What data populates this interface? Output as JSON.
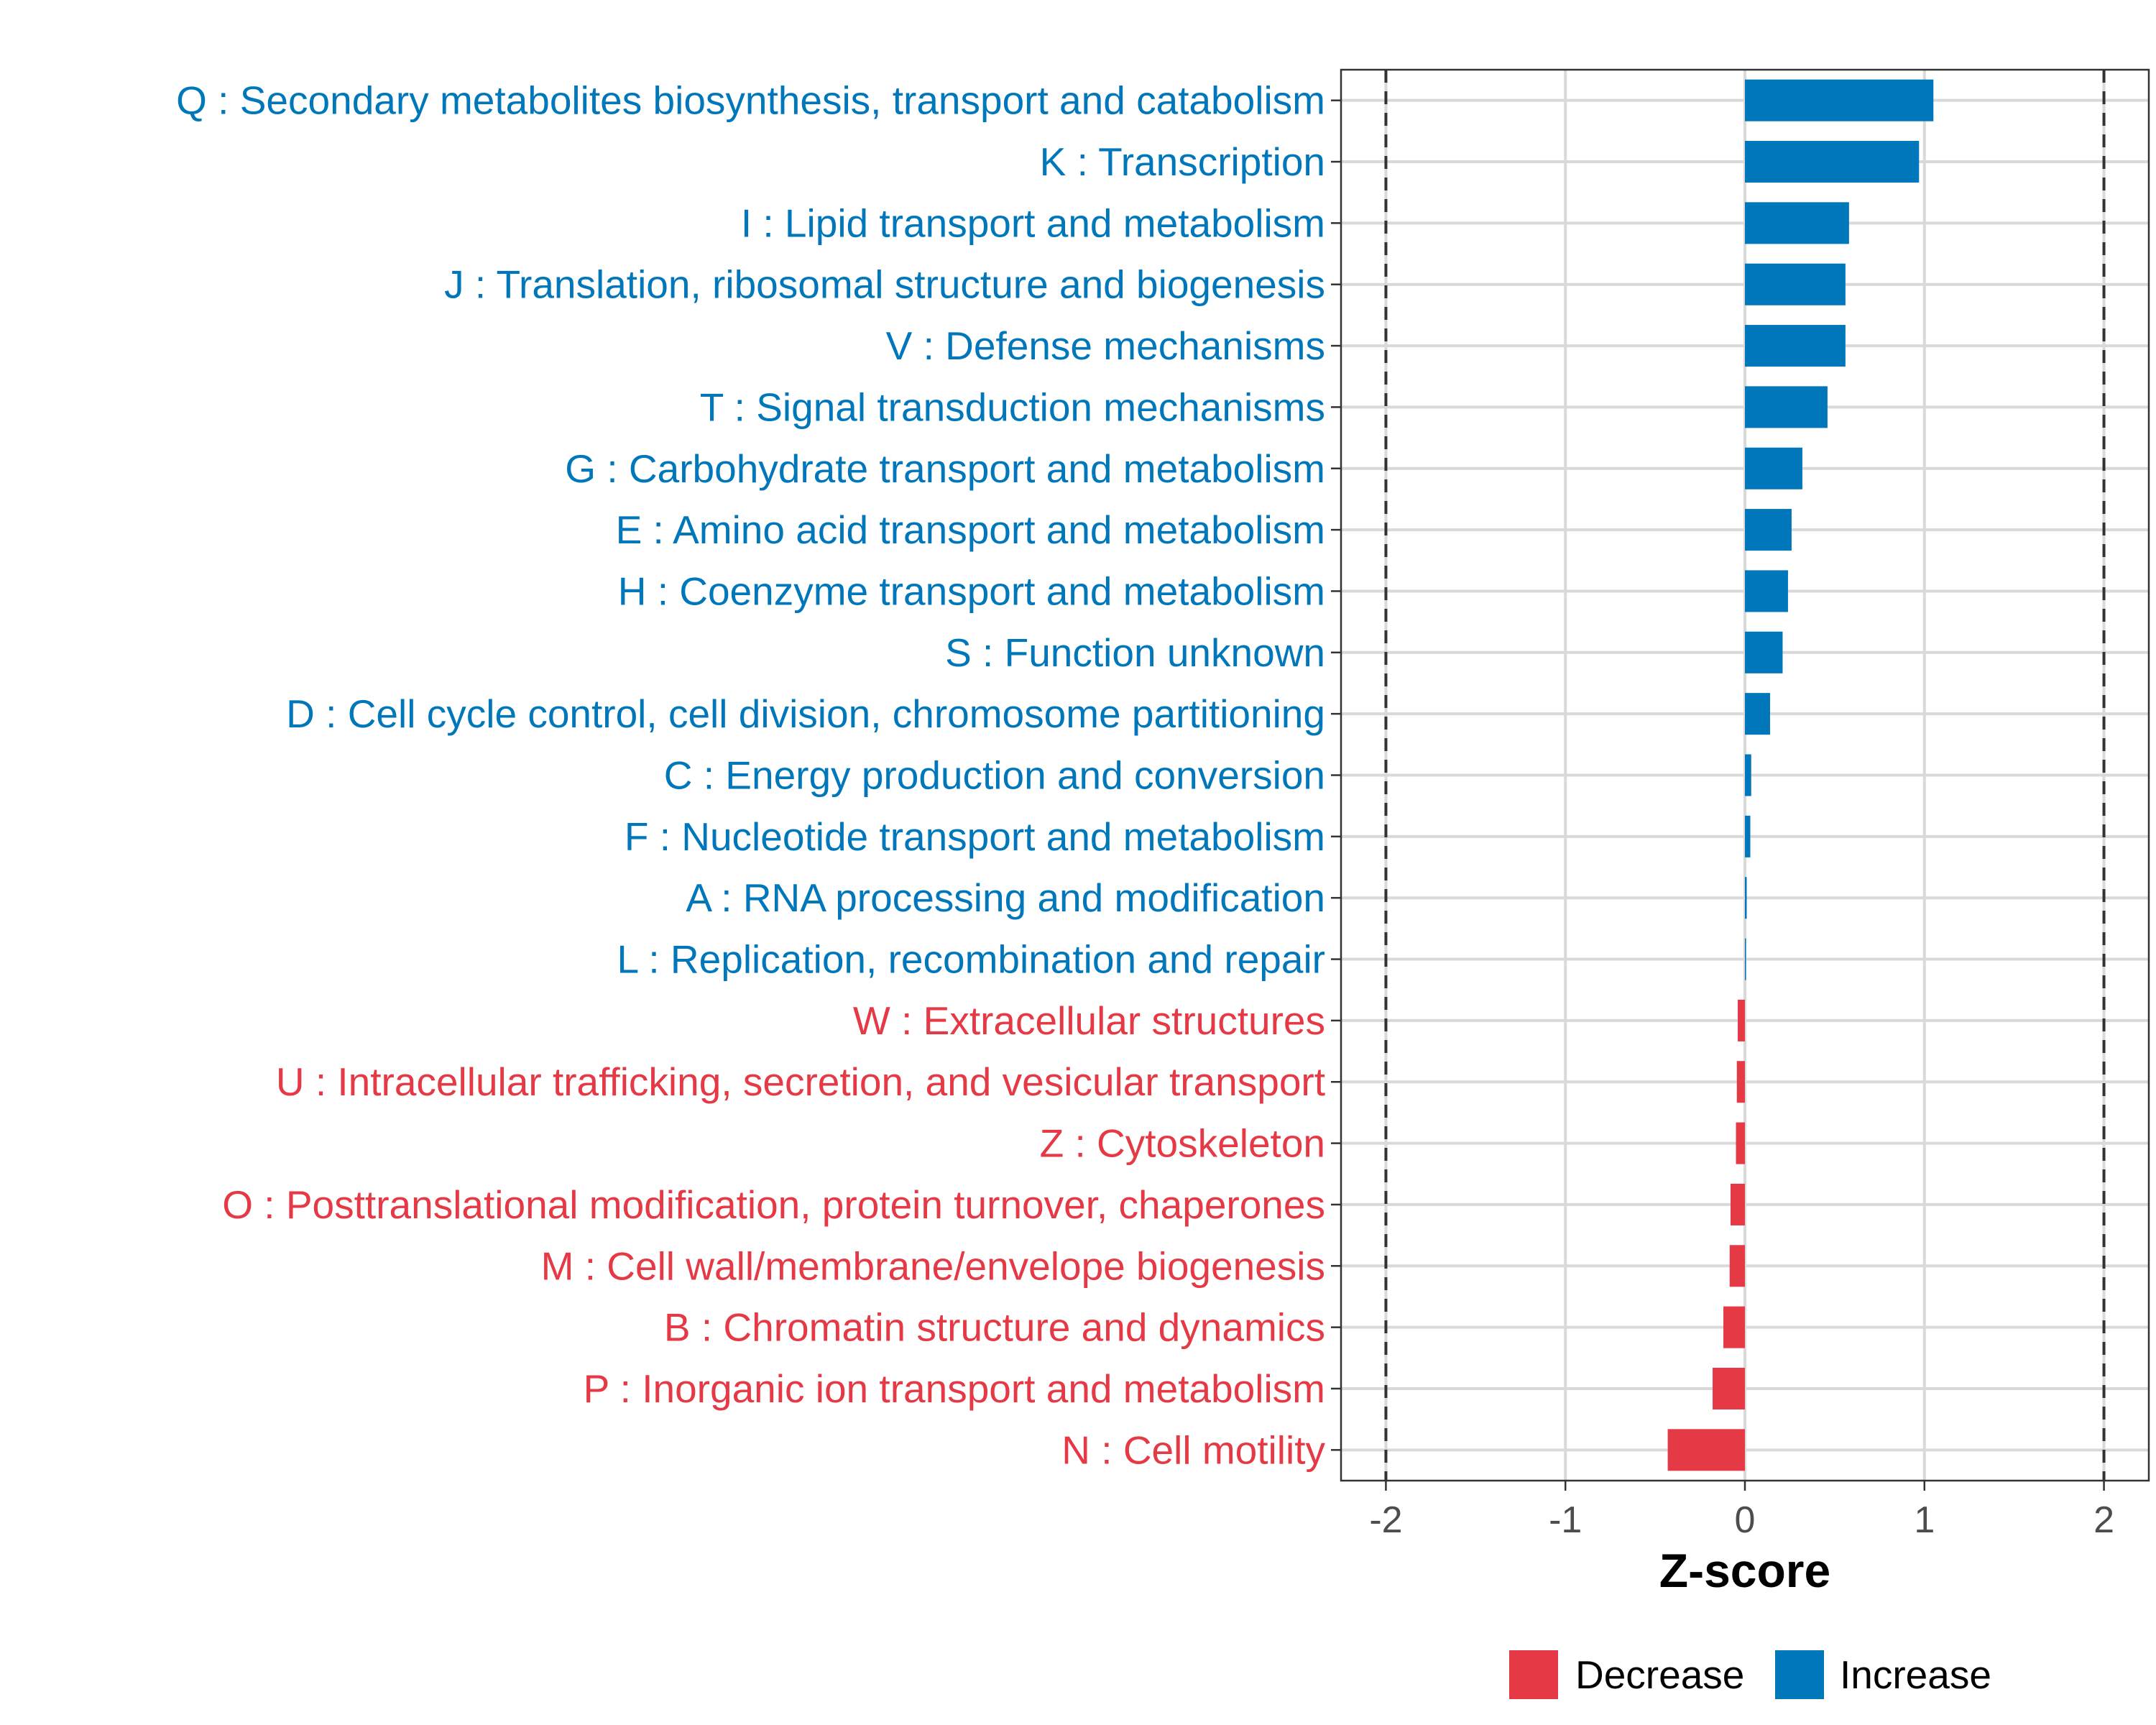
{
  "chart_data": {
    "type": "bar",
    "orientation": "horizontal",
    "title": "",
    "xlabel": "Z-score",
    "ylabel": "",
    "xlim": [
      -2.25,
      2.25
    ],
    "x_ticks": [
      -2,
      -1,
      0,
      1,
      2
    ],
    "x_tick_labels": [
      "-2",
      "-1",
      "0",
      "1",
      "2"
    ],
    "reference_lines": [
      -2,
      2
    ],
    "grid": true,
    "colors": {
      "Decrease": "#e63946",
      "Increase": "#0077bb"
    },
    "categories": [
      "Q : Secondary metabolites biosynthesis, transport and catabolism",
      "K : Transcription",
      "I : Lipid transport and metabolism",
      "J : Translation, ribosomal structure and biogenesis",
      "V : Defense mechanisms",
      "T : Signal transduction mechanisms",
      "G : Carbohydrate transport and metabolism",
      "E : Amino acid transport and metabolism",
      "H : Coenzyme transport and metabolism",
      "S : Function unknown",
      "D : Cell cycle control, cell division, chromosome partitioning",
      "C : Energy production and conversion",
      "F : Nucleotide transport and metabolism",
      "A : RNA processing and modification",
      "L : Replication, recombination and repair",
      "W : Extracellular structures",
      "U : Intracellular trafficking, secretion, and vesicular transport",
      "Z : Cytoskeleton",
      "O : Posttranslational modification, protein turnover, chaperones",
      "M : Cell wall/membrane/envelope biogenesis",
      "B : Chromatin structure and dynamics",
      "P : Inorganic ion transport and metabolism",
      "N : Cell motility"
    ],
    "values": [
      1.05,
      0.97,
      0.58,
      0.56,
      0.56,
      0.46,
      0.32,
      0.26,
      0.24,
      0.21,
      0.14,
      0.035,
      0.03,
      0.01,
      0.005,
      -0.04,
      -0.045,
      -0.05,
      -0.08,
      -0.085,
      -0.12,
      -0.18,
      -0.43
    ],
    "groups": [
      "Increase",
      "Increase",
      "Increase",
      "Increase",
      "Increase",
      "Increase",
      "Increase",
      "Increase",
      "Increase",
      "Increase",
      "Increase",
      "Increase",
      "Increase",
      "Increase",
      "Increase",
      "Decrease",
      "Decrease",
      "Decrease",
      "Decrease",
      "Decrease",
      "Decrease",
      "Decrease",
      "Decrease"
    ],
    "legend": {
      "position": "bottom",
      "entries": [
        {
          "label": "Decrease",
          "color": "#e63946"
        },
        {
          "label": "Increase",
          "color": "#0077bb"
        }
      ]
    }
  }
}
